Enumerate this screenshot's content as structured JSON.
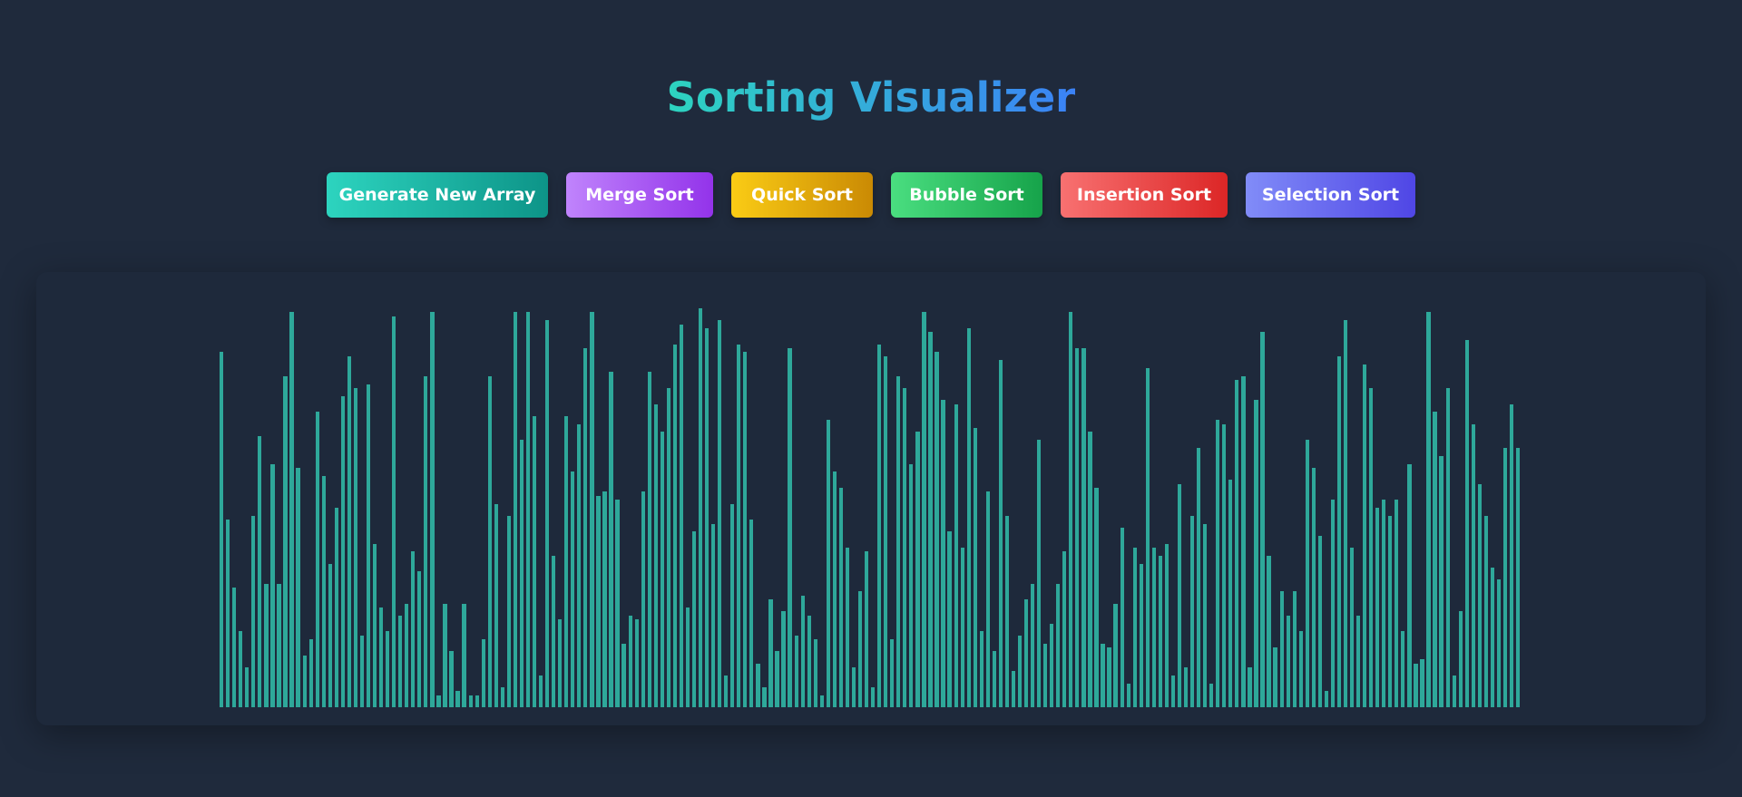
{
  "title": "Sorting Visualizer",
  "buttons": {
    "generate": "Generate New Array",
    "merge": "Merge Sort",
    "quick": "Quick Sort",
    "bubble": "Bubble Sort",
    "insertion": "Insertion Sort",
    "selection": "Selection Sort"
  },
  "colors": {
    "background": "#1f2a3c",
    "bar": "#2ea89a"
  },
  "array_max": 100,
  "array": [
    89,
    47,
    30,
    19,
    10,
    48,
    68,
    31,
    61,
    31,
    83,
    99,
    60,
    13,
    17,
    74,
    58,
    36,
    50,
    78,
    88,
    80,
    18,
    81,
    41,
    25,
    19,
    98,
    23,
    26,
    39,
    34,
    83,
    99,
    3,
    26,
    14,
    4,
    26,
    3,
    3,
    17,
    83,
    51,
    5,
    48,
    99,
    67,
    99,
    73,
    8,
    97,
    38,
    22,
    73,
    59,
    71,
    90,
    99,
    53,
    54,
    84,
    52,
    16,
    23,
    22,
    54,
    84,
    76,
    69,
    80,
    91,
    96,
    25,
    44,
    100,
    95,
    46,
    97,
    8,
    51,
    91,
    89,
    47,
    11,
    5,
    27,
    14,
    24,
    90,
    18,
    28,
    23,
    17,
    3,
    72,
    59,
    55,
    40,
    10,
    29,
    39,
    5,
    91,
    88,
    17,
    83,
    80,
    61,
    69,
    99,
    94,
    89,
    77,
    44,
    76,
    40,
    95,
    70,
    19,
    54,
    14,
    87,
    48,
    9,
    18,
    27,
    31,
    67,
    16,
    21,
    31,
    39,
    99,
    90,
    90,
    69,
    55,
    16,
    15,
    26,
    45,
    6,
    40,
    36,
    85,
    40,
    38,
    41,
    8,
    56,
    10,
    48,
    65,
    46,
    6,
    72,
    71,
    57,
    82,
    83,
    10,
    77,
    94,
    38,
    15,
    29,
    23,
    29,
    19,
    67,
    60,
    43,
    4,
    52,
    88,
    97,
    40,
    23,
    86,
    80,
    50,
    52,
    48,
    52,
    19,
    61,
    11,
    12,
    99,
    74,
    63,
    80,
    8,
    24,
    92,
    71,
    56,
    48,
    35,
    32,
    65,
    76,
    65
  ]
}
